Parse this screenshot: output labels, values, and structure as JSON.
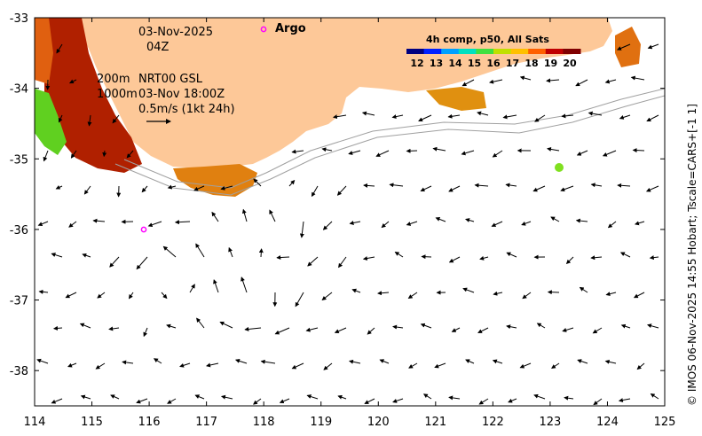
{
  "map": {
    "lon_range": [
      114,
      125
    ],
    "lat_range": [
      -38.5,
      -33
    ],
    "lon_ticks": [
      "114",
      "115",
      "116",
      "117",
      "118",
      "119",
      "120",
      "121",
      "122",
      "123",
      "124",
      "125"
    ],
    "lat_ticks": [
      "-33",
      "-34",
      "-35",
      "-36",
      "-37",
      "-38"
    ],
    "land_color": "#fdc898",
    "scale_arrow_speed": "0.5m/s (1kt 24h)"
  },
  "annotations": {
    "date": "03-Nov-2025",
    "hour": "04Z",
    "contour_200": "200m",
    "contour_1000": "1000m",
    "source": "NRT00 GSL",
    "source_time": "03-Nov 18:00Z",
    "speed_scale": "0.5m/s (1kt 24h)"
  },
  "legend": {
    "title": "4h comp, p50, All Sats",
    "ticks": [
      "12",
      "13",
      "14",
      "15",
      "16",
      "17",
      "18",
      "19",
      "20"
    ],
    "colors": [
      "#000080",
      "#0020ff",
      "#00a0ff",
      "#00e0c0",
      "#40e040",
      "#c0e000",
      "#ffc000",
      "#ff6000",
      "#c00000",
      "#800000"
    ]
  },
  "argo": {
    "label": "Argo",
    "color": "#ff00ff"
  },
  "credit": "© IMOS 06-Nov-2025 14:55 Hobart; Tscale=CARS+[-1 1]"
}
